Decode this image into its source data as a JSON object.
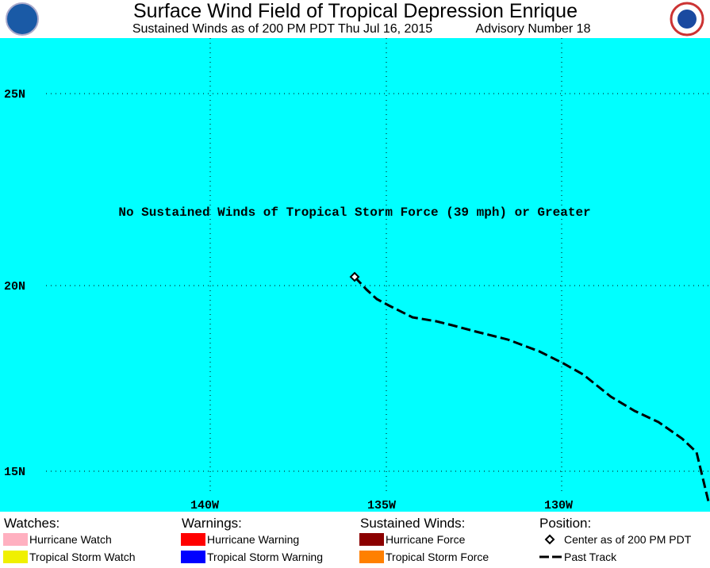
{
  "header": {
    "title": "Surface Wind Field of Tropical Depression Enrique",
    "subtitle": "Sustained Winds as of 200 PM PDT Thu Jul 16, 2015",
    "advisory": "Advisory Number 18"
  },
  "map": {
    "message": "No Sustained Winds of Tropical Storm Force (39 mph) or Greater",
    "lat_labels": [
      "25N",
      "20N",
      "15N"
    ],
    "lon_labels": [
      "140W",
      "135W",
      "130W"
    ]
  },
  "legend": {
    "groups": [
      {
        "heading": "Watches:",
        "items": [
          {
            "label": "Hurricane Watch",
            "color": "#ffb0c0"
          },
          {
            "label": "Tropical Storm Watch",
            "color": "#f0f000"
          }
        ]
      },
      {
        "heading": "Warnings:",
        "items": [
          {
            "label": "Hurricane Warning",
            "color": "#ff0000"
          },
          {
            "label": "Tropical Storm Warning",
            "color": "#0000ff"
          }
        ]
      },
      {
        "heading": "Sustained Winds:",
        "items": [
          {
            "label": "Hurricane Force",
            "color": "#8b0000"
          },
          {
            "label": "Tropical Storm Force",
            "color": "#ff8000"
          }
        ]
      },
      {
        "heading": "Position:",
        "items": [
          {
            "label": "Center as of 200 PM PDT",
            "symbol": "diamond"
          },
          {
            "label": "Past Track",
            "symbol": "dash"
          }
        ]
      }
    ]
  }
}
